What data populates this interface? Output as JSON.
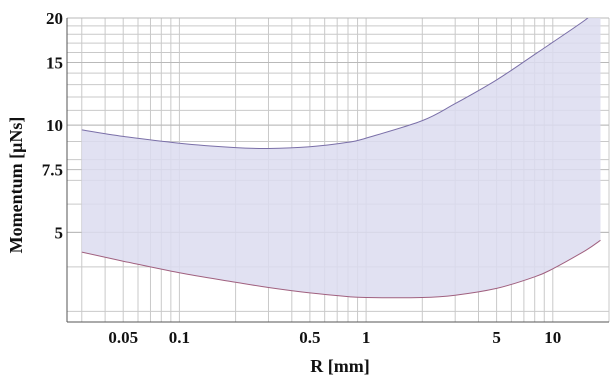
{
  "chart_data": {
    "type": "area",
    "title": "",
    "xlabel": "R [mm]",
    "ylabel": "Momentum [μNs]",
    "x_scale": "log",
    "y_scale": "log",
    "xlim": [
      0.025,
      20
    ],
    "ylim": [
      2.8,
      20
    ],
    "x_ticks": [
      {
        "value": 0.05,
        "label": "0.05"
      },
      {
        "value": 0.1,
        "label": "0.1"
      },
      {
        "value": 0.5,
        "label": "0.5"
      },
      {
        "value": 1,
        "label": "1"
      },
      {
        "value": 5,
        "label": "5"
      },
      {
        "value": 10,
        "label": "10"
      }
    ],
    "y_ticks": [
      {
        "value": 5,
        "label": "5"
      },
      {
        "value": 7.5,
        "label": "7.5"
      },
      {
        "value": 10,
        "label": "10"
      },
      {
        "value": 15,
        "label": "15"
      },
      {
        "value": 20,
        "label": "20"
      }
    ],
    "grid": true,
    "fill_color": "#dcdcf0",
    "upper_line_color": "#7a6fa8",
    "lower_line_color": "#a0607f",
    "band": {
      "x": [
        0.03,
        0.05,
        0.1,
        0.2,
        0.3,
        0.5,
        0.8,
        1,
        2,
        3,
        5,
        8,
        10,
        15,
        18
      ],
      "upper": [
        9.7,
        9.3,
        8.9,
        8.65,
        8.6,
        8.7,
        8.95,
        9.2,
        10.3,
        11.5,
        13.4,
        15.8,
        17.1,
        19.8,
        21.5
      ],
      "lower": [
        4.4,
        4.15,
        3.85,
        3.62,
        3.5,
        3.38,
        3.3,
        3.28,
        3.28,
        3.33,
        3.48,
        3.75,
        3.95,
        4.45,
        4.75
      ]
    }
  }
}
